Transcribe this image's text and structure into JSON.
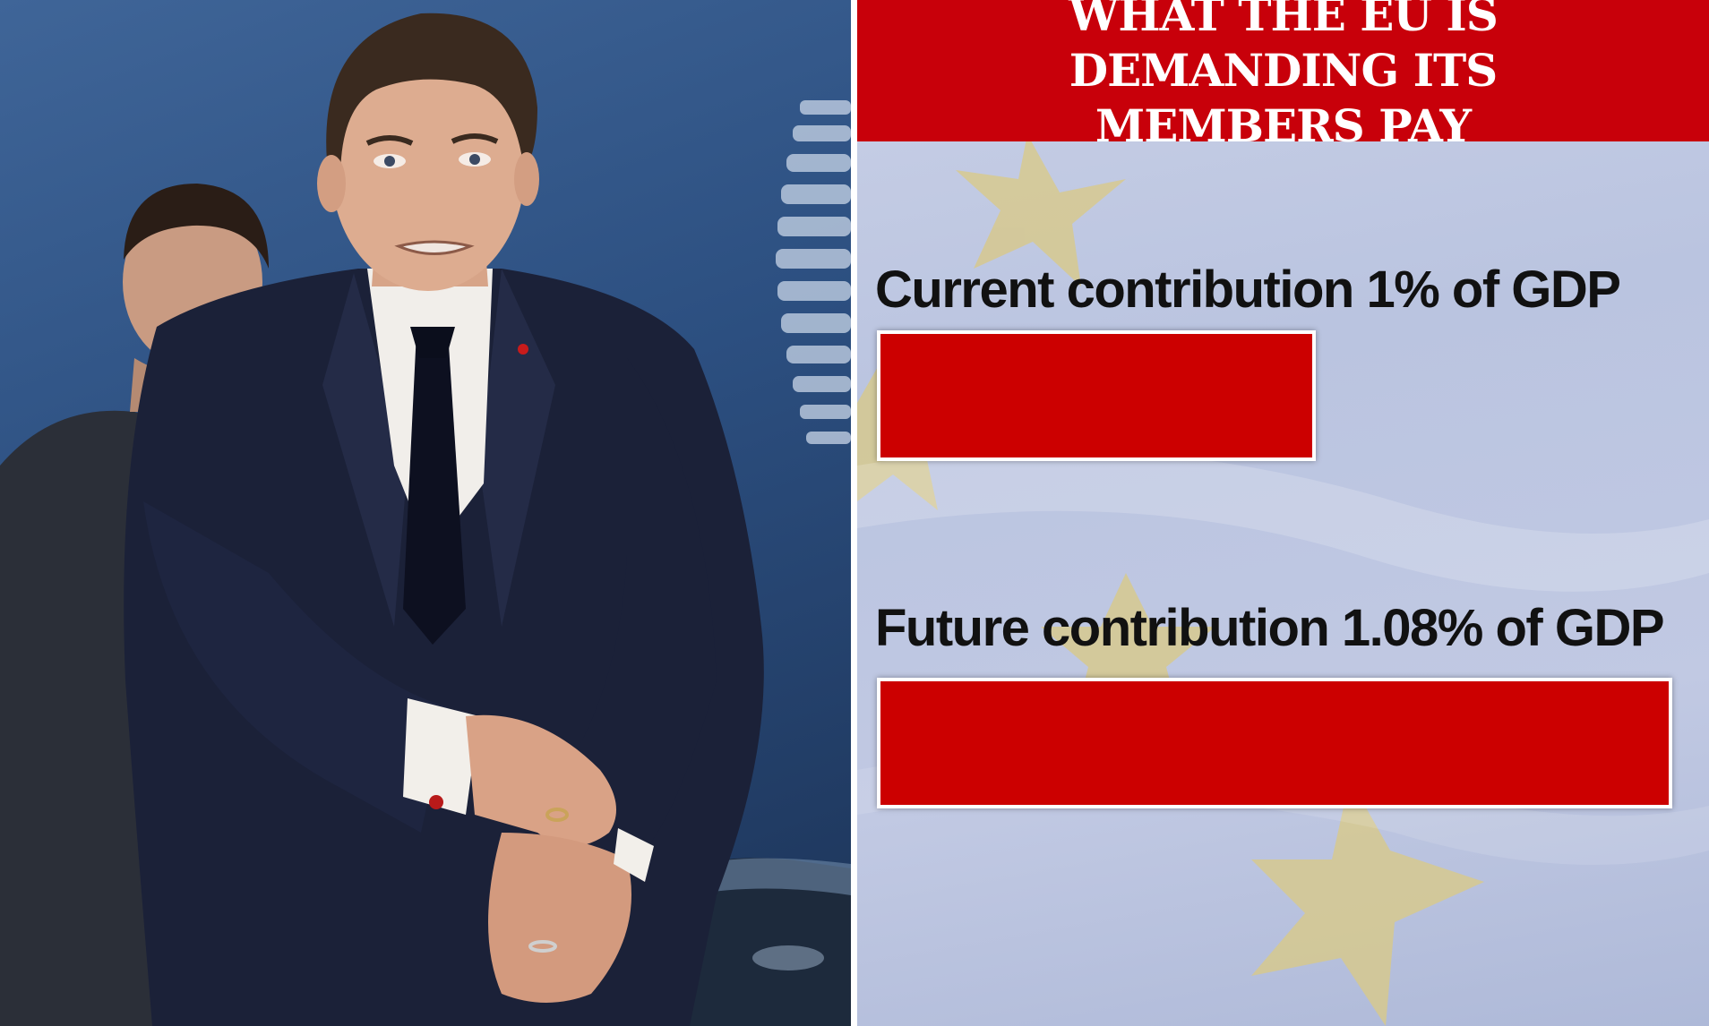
{
  "chart_data": {
    "type": "bar",
    "orientation": "horizontal",
    "title": "WHAT THE EU IS DEMANDING ITS MEMBERS PAY",
    "categories": [
      "Current contribution 1% of GDP",
      "Future contribution 1.08% of GDP"
    ],
    "values": [
      1.0,
      1.08
    ],
    "unit": "% of GDP",
    "grid": false,
    "colors": {
      "bar": "#cc0000",
      "header": "#c8000a",
      "bar_border": "#ffffff"
    }
  },
  "background": {
    "left": "photo of a man in a dark suit adjusting his cuff",
    "right": "eu-flag-background"
  }
}
